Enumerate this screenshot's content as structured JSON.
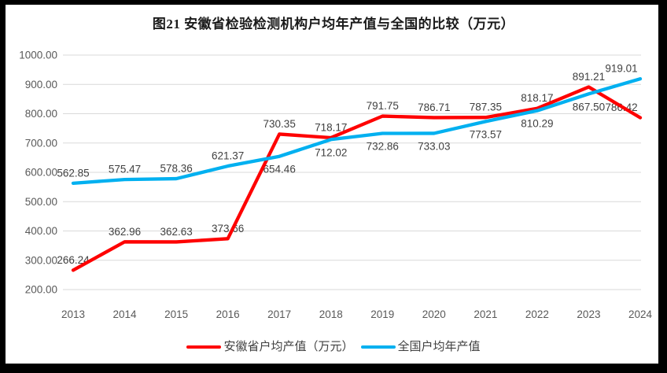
{
  "chart_data": {
    "type": "line",
    "title": "图21 安徽省检验检测机构户均年产值与全国的比较（万元）",
    "categories": [
      "2013",
      "2014",
      "2015",
      "2016",
      "2017",
      "2018",
      "2019",
      "2020",
      "2021",
      "2022",
      "2023",
      "2024"
    ],
    "series": [
      {
        "name": "安徽省户均产值（万元）",
        "color": "#FE0000",
        "values": [
          266.24,
          362.96,
          362.63,
          373.66,
          730.35,
          718.17,
          791.75,
          786.71,
          787.35,
          818.17,
          891.21,
          786.42
        ],
        "label_side": [
          "above",
          "above",
          "above",
          "above",
          "above",
          "above",
          "above",
          "above",
          "above",
          "above",
          "above",
          "above"
        ]
      },
      {
        "name": "全国户均年产值",
        "color": "#00B0F0",
        "values": [
          562.85,
          575.47,
          578.36,
          621.37,
          654.46,
          712.02,
          732.86,
          733.03,
          773.57,
          810.29,
          867.5,
          919.01
        ],
        "label_side": [
          "above",
          "above",
          "above",
          "above",
          "below",
          "below",
          "below",
          "below",
          "below",
          "below",
          "below",
          "above"
        ]
      }
    ],
    "ylim": [
      200,
      1000
    ],
    "ytick_step": 100,
    "ytick_labels": [
      "200.00",
      "300.00",
      "400.00",
      "500.00",
      "600.00",
      "700.00",
      "800.00",
      "900.00",
      "1000.00"
    ],
    "grid": true,
    "data_labels": true,
    "data_label_decimals": 2,
    "legend_position": "bottom",
    "colors": {
      "gridline": "#D9D9D9",
      "axis_text": "#595959",
      "data_label_text": "#404040",
      "title_text": "#1A1A1A",
      "frame": "#000000",
      "background": "#FFFFFF"
    }
  }
}
